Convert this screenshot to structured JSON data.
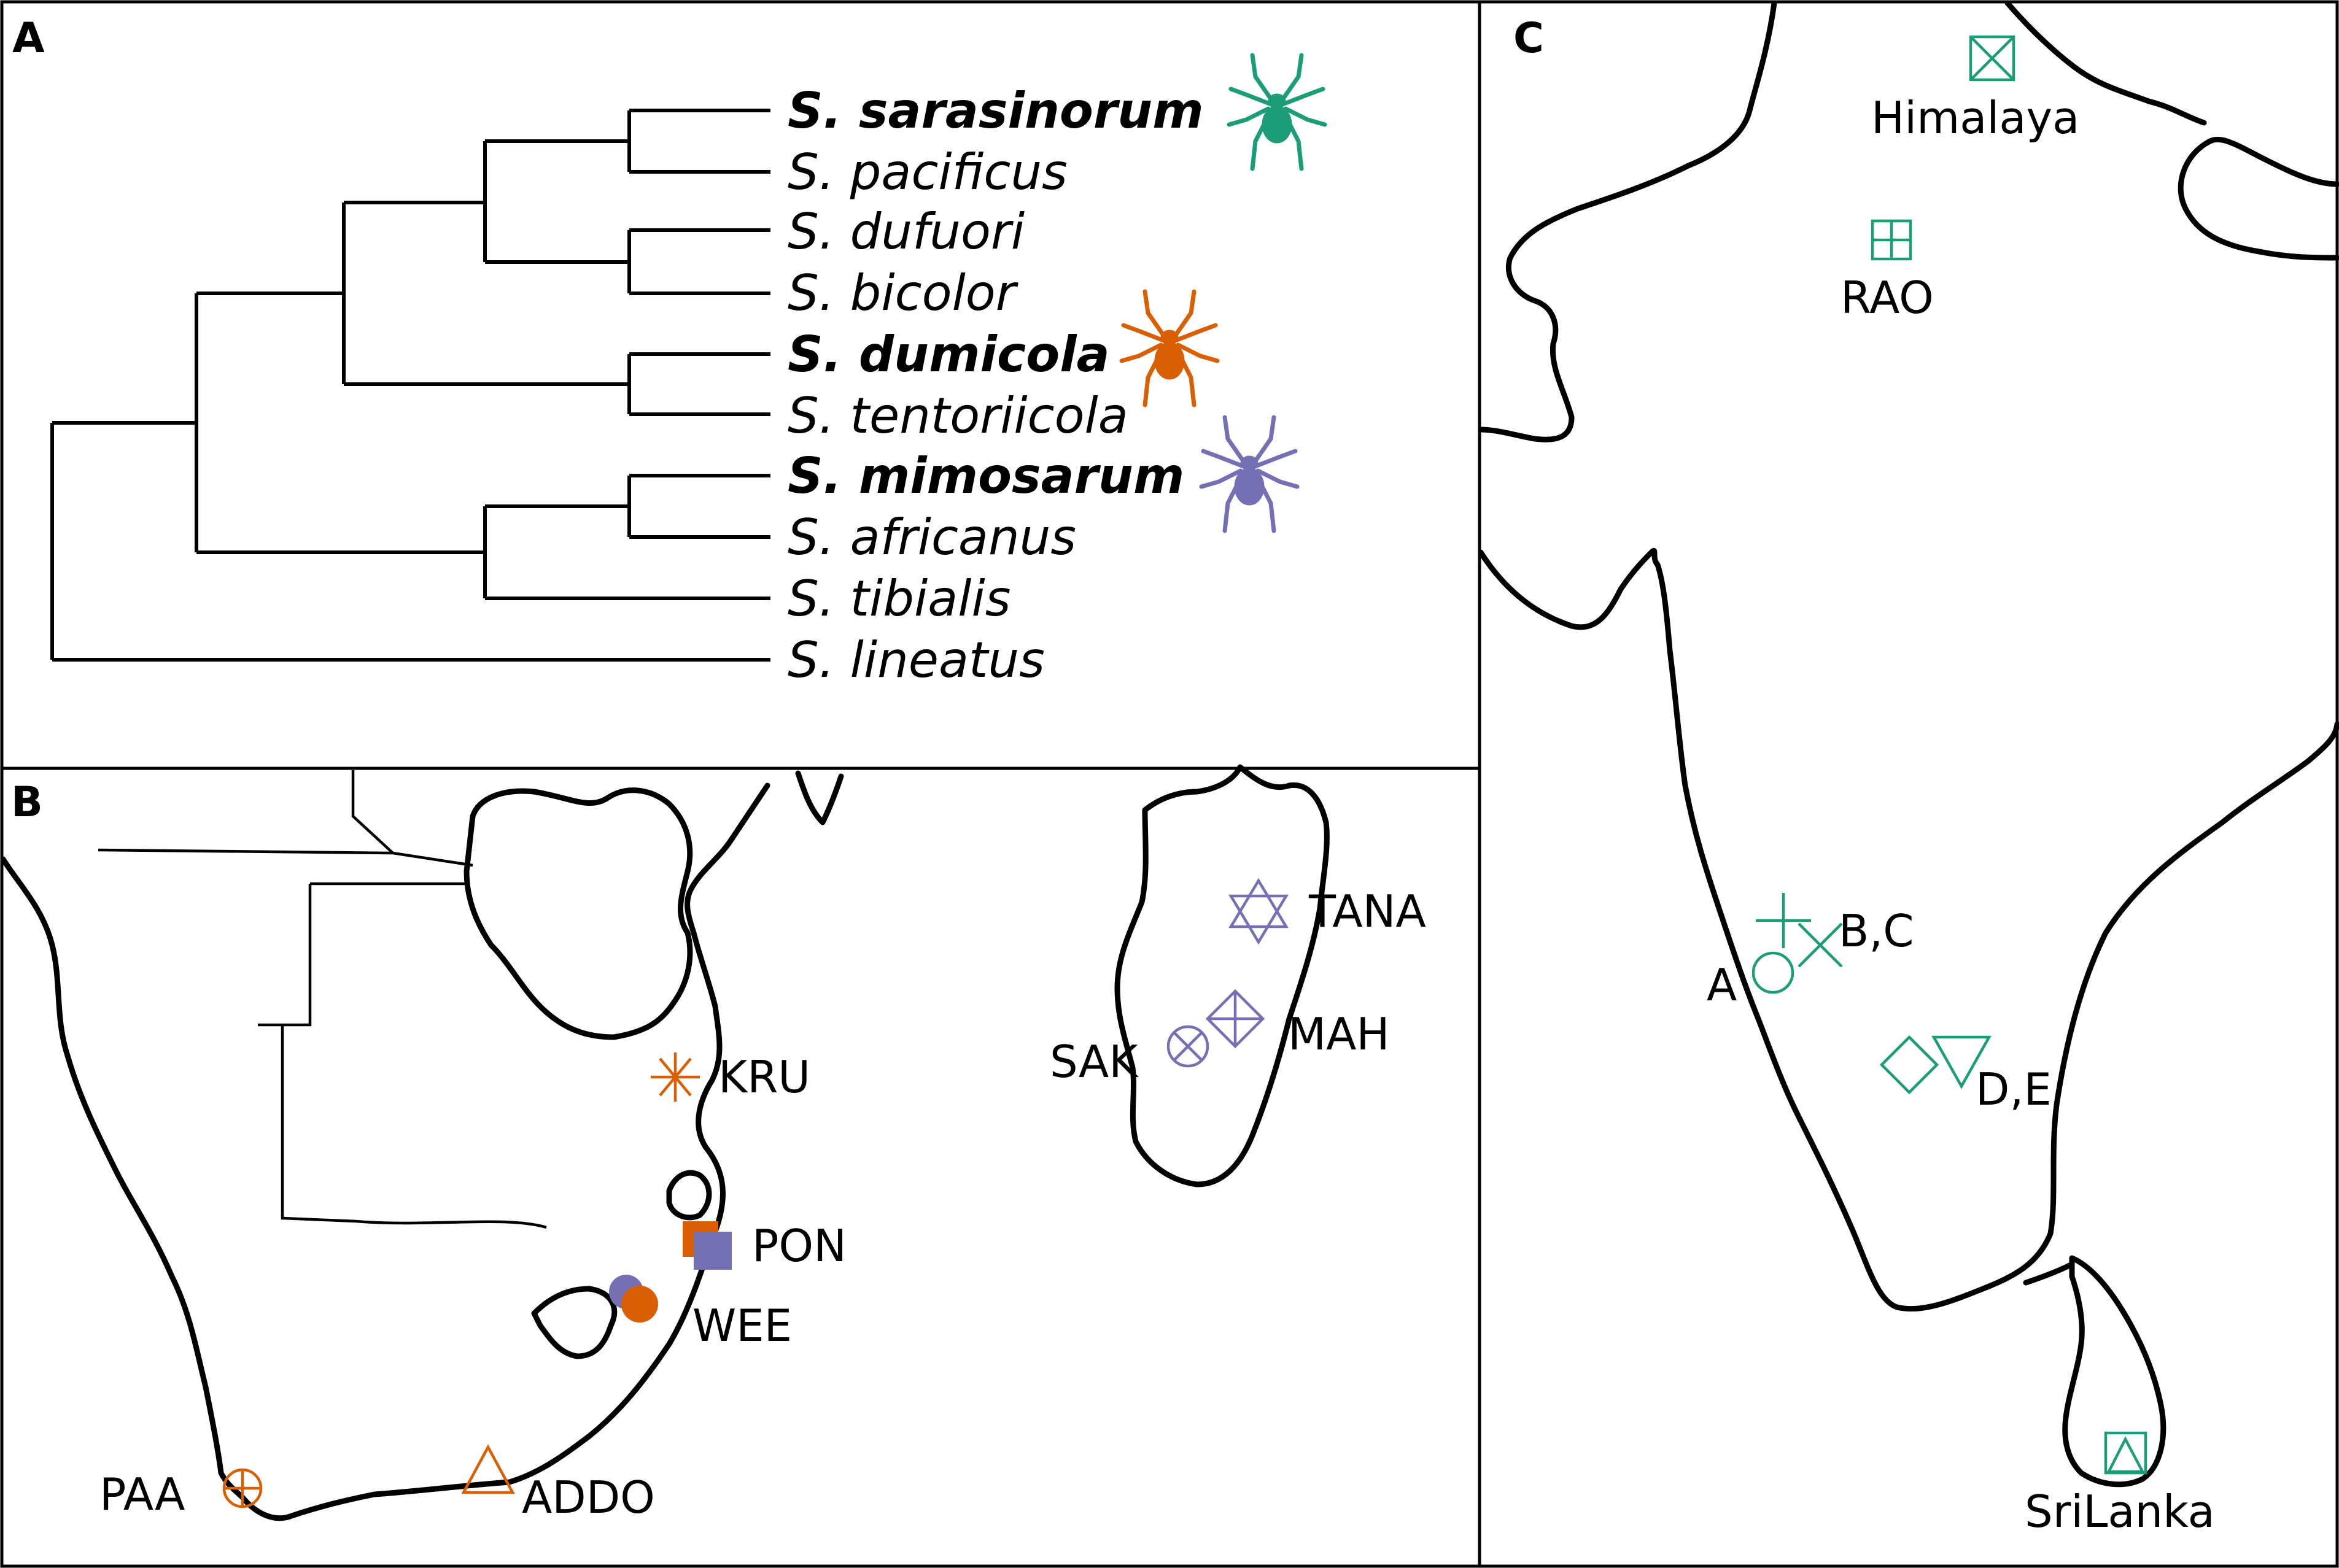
{
  "panels": {
    "a": "A",
    "b": "B",
    "c": "C"
  },
  "tree": {
    "taxa": [
      {
        "name": "S. sarasinorum",
        "bold": true,
        "color": "#1b9e77"
      },
      {
        "name": "S. pacificus",
        "bold": false
      },
      {
        "name": "S. dufuori",
        "bold": false
      },
      {
        "name": "S. bicolor",
        "bold": false
      },
      {
        "name": "S. dumicola",
        "bold": true,
        "color": "#d95f02"
      },
      {
        "name": "S. tentoriicola",
        "bold": false
      },
      {
        "name": "S. mimosarum",
        "bold": true,
        "color": "#7570b3"
      },
      {
        "name": "S. africanus",
        "bold": false
      },
      {
        "name": "S. tibialis",
        "bold": false
      },
      {
        "name": "S. lineatus",
        "bold": false
      }
    ]
  },
  "africa_sites": {
    "kru": "KRU",
    "pon": "PON",
    "wee": "WEE",
    "paa": "PAA",
    "addo": "ADDO",
    "tana": "TANA",
    "mah": "MAH",
    "sak": "SAK"
  },
  "india_sites": {
    "himalaya": "Himalaya",
    "rao": "RAO",
    "bc": "B,C",
    "a": "A",
    "de": "D,E",
    "srilanka": "SriLanka"
  },
  "colors": {
    "sarasinorum": "#1b9e77",
    "dumicola": "#d95f02",
    "mimosarum": "#7570b3"
  },
  "icons": [
    "spider-icon",
    "star-symbol",
    "square-symbol",
    "circle-symbol",
    "triangle-symbol",
    "circle-plus-symbol",
    "hexagram-symbol",
    "diamond-plus-symbol",
    "circle-x-symbol",
    "box-x-symbol",
    "box-plus-symbol",
    "plus-symbol",
    "x-symbol",
    "diamond-symbol",
    "down-triangle-symbol",
    "box-triangle-symbol"
  ]
}
